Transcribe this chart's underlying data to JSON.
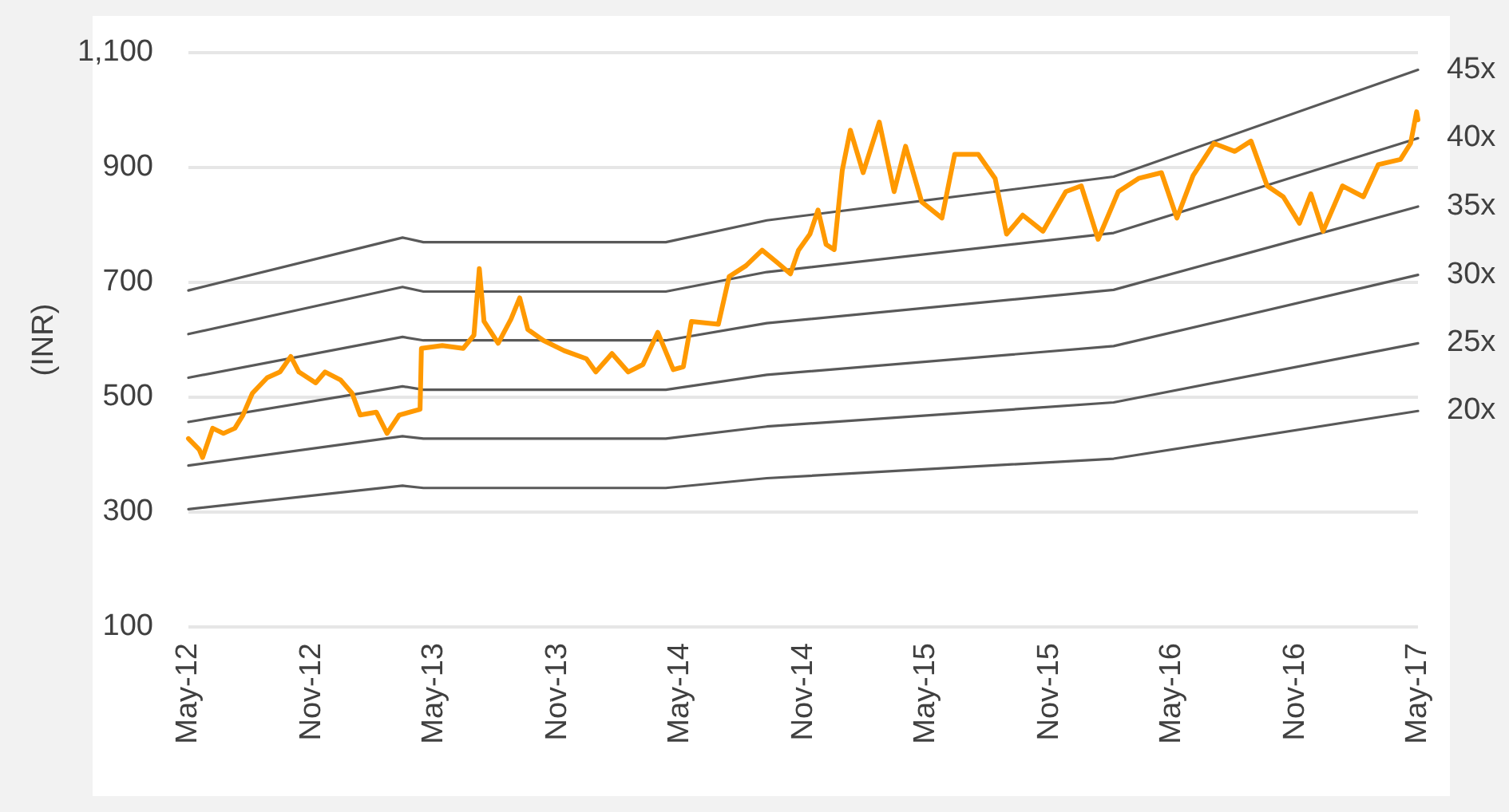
{
  "chart_data": {
    "type": "line",
    "ylabel": "(INR)",
    "xlim": [
      "2012-05-01",
      "2017-05-01"
    ],
    "ylim": [
      100,
      1100
    ],
    "yticks": [
      100,
      300,
      500,
      700,
      900,
      {
        "value": 1100,
        "label": "1,100"
      }
    ],
    "xticks": [
      {
        "value": "2012-05-01",
        "label": "May-12"
      },
      {
        "value": "2012-11-01",
        "label": "Nov-12"
      },
      {
        "value": "2013-05-01",
        "label": "May-13"
      },
      {
        "value": "2013-11-01",
        "label": "Nov-13"
      },
      {
        "value": "2014-05-01",
        "label": "May-14"
      },
      {
        "value": "2014-11-01",
        "label": "Nov-14"
      },
      {
        "value": "2015-05-01",
        "label": "May-15"
      },
      {
        "value": "2015-11-01",
        "label": "Nov-15"
      },
      {
        "value": "2016-05-01",
        "label": "May-16"
      },
      {
        "value": "2016-11-01",
        "label": "Nov-16"
      },
      {
        "value": "2017-05-01",
        "label": "May-17"
      }
    ],
    "grid": "y",
    "marker": "none",
    "line_style": "solid",
    "series": [
      {
        "name": "45x",
        "color": "#595959",
        "x": [
          "2012-05-01",
          "2013-03-15",
          "2013-04-15",
          "2014-04-10",
          "2014-09-07",
          "2016-02-04",
          "2017-05-01"
        ],
        "values": [
          686,
          778,
          770,
          770,
          808,
          884,
          1070
        ]
      },
      {
        "name": "40x",
        "color": "#595959",
        "x": [
          "2012-05-01",
          "2013-03-15",
          "2013-04-15",
          "2014-04-10",
          "2014-09-07",
          "2016-02-04",
          "2017-05-01"
        ],
        "values": [
          610,
          692,
          684,
          684,
          718,
          786,
          951
        ]
      },
      {
        "name": "35x",
        "color": "#595959",
        "x": [
          "2012-05-01",
          "2013-03-15",
          "2013-04-15",
          "2014-04-10",
          "2014-09-07",
          "2016-02-04",
          "2017-05-01"
        ],
        "values": [
          534,
          605,
          599,
          599,
          629,
          687,
          832
        ]
      },
      {
        "name": "30x",
        "color": "#595959",
        "x": [
          "2012-05-01",
          "2013-03-15",
          "2013-04-15",
          "2014-04-10",
          "2014-09-07",
          "2016-02-04",
          "2017-05-01"
        ],
        "values": [
          457,
          519,
          513,
          513,
          539,
          589,
          713
        ]
      },
      {
        "name": "25x",
        "color": "#595959",
        "x": [
          "2012-05-01",
          "2013-03-15",
          "2013-04-15",
          "2014-04-10",
          "2014-09-07",
          "2016-02-04",
          "2017-05-01"
        ],
        "values": [
          381,
          432,
          428,
          428,
          449,
          491,
          594
        ]
      },
      {
        "name": "20x",
        "color": "#595959",
        "x": [
          "2012-05-01",
          "2013-03-15",
          "2013-04-15",
          "2014-04-10",
          "2014-09-07",
          "2016-02-04",
          "2017-05-01"
        ],
        "values": [
          305,
          346,
          342,
          342,
          359,
          393,
          476
        ]
      },
      {
        "color": "#ff9900",
        "x": [
          "2012-05-01",
          "2012-05-17",
          "2012-05-22",
          "2012-06-06",
          "2012-06-22",
          "2012-07-09",
          "2012-07-21",
          "2012-08-04",
          "2012-08-26",
          "2012-09-14",
          "2012-09-30",
          "2012-10-12",
          "2012-11-06",
          "2012-11-20",
          "2012-12-13",
          "2012-12-30",
          "2013-01-11",
          "2013-02-04",
          "2013-02-20",
          "2013-03-10",
          "2013-04-10",
          "2013-04-12",
          "2013-05-13",
          "2013-06-13",
          "2013-06-29",
          "2013-07-07",
          "2013-07-14",
          "2013-08-04",
          "2013-08-23",
          "2013-09-05",
          "2013-09-17",
          "2013-10-10",
          "2013-11-10",
          "2013-12-13",
          "2013-12-27",
          "2014-01-20",
          "2014-02-13",
          "2014-03-07",
          "2014-03-29",
          "2014-04-21",
          "2014-05-06",
          "2014-05-18",
          "2014-06-27",
          "2014-07-13",
          "2014-08-07",
          "2014-08-31",
          "2014-09-24",
          "2014-10-12",
          "2014-10-24",
          "2014-11-10",
          "2014-11-22",
          "2014-12-04",
          "2014-12-16",
          "2014-12-28",
          "2015-01-09",
          "2015-01-28",
          "2015-02-21",
          "2015-03-15",
          "2015-04-01",
          "2015-04-25",
          "2015-05-25",
          "2015-06-13",
          "2015-07-18",
          "2015-08-12",
          "2015-08-29",
          "2015-09-22",
          "2015-10-22",
          "2015-11-25",
          "2015-12-18",
          "2016-01-12",
          "2016-02-11",
          "2016-03-12",
          "2016-04-15",
          "2016-05-08",
          "2016-06-01",
          "2016-07-02",
          "2016-08-02",
          "2016-08-26",
          "2016-09-19",
          "2016-10-13",
          "2016-11-06",
          "2016-11-23",
          "2016-12-11",
          "2017-01-09",
          "2017-02-09",
          "2017-03-03",
          "2017-04-05",
          "2017-04-20",
          "2017-04-29",
          "2017-05-01"
        ],
        "values": [
          428,
          409,
          395,
          446,
          437,
          446,
          469,
          507,
          534,
          544,
          571,
          544,
          525,
          544,
          530,
          507,
          469,
          474,
          437,
          469,
          479,
          585,
          590,
          585,
          608,
          724,
          632,
          594,
          636,
          673,
          618,
          599,
          581,
          567,
          544,
          576,
          544,
          557,
          613,
          548,
          553,
          632,
          627,
          710,
          729,
          756,
          733,
          715,
          756,
          784,
          826,
          766,
          757,
          895,
          965,
          891,
          979,
          858,
          937,
          840,
          812,
          923,
          923,
          881,
          784,
          817,
          789,
          858,
          868,
          775,
          858,
          881,
          891,
          812,
          886,
          942,
          928,
          946,
          868,
          849,
          803,
          854,
          789,
          868,
          849,
          905,
          914,
          942,
          997,
          983
        ]
      }
    ]
  }
}
